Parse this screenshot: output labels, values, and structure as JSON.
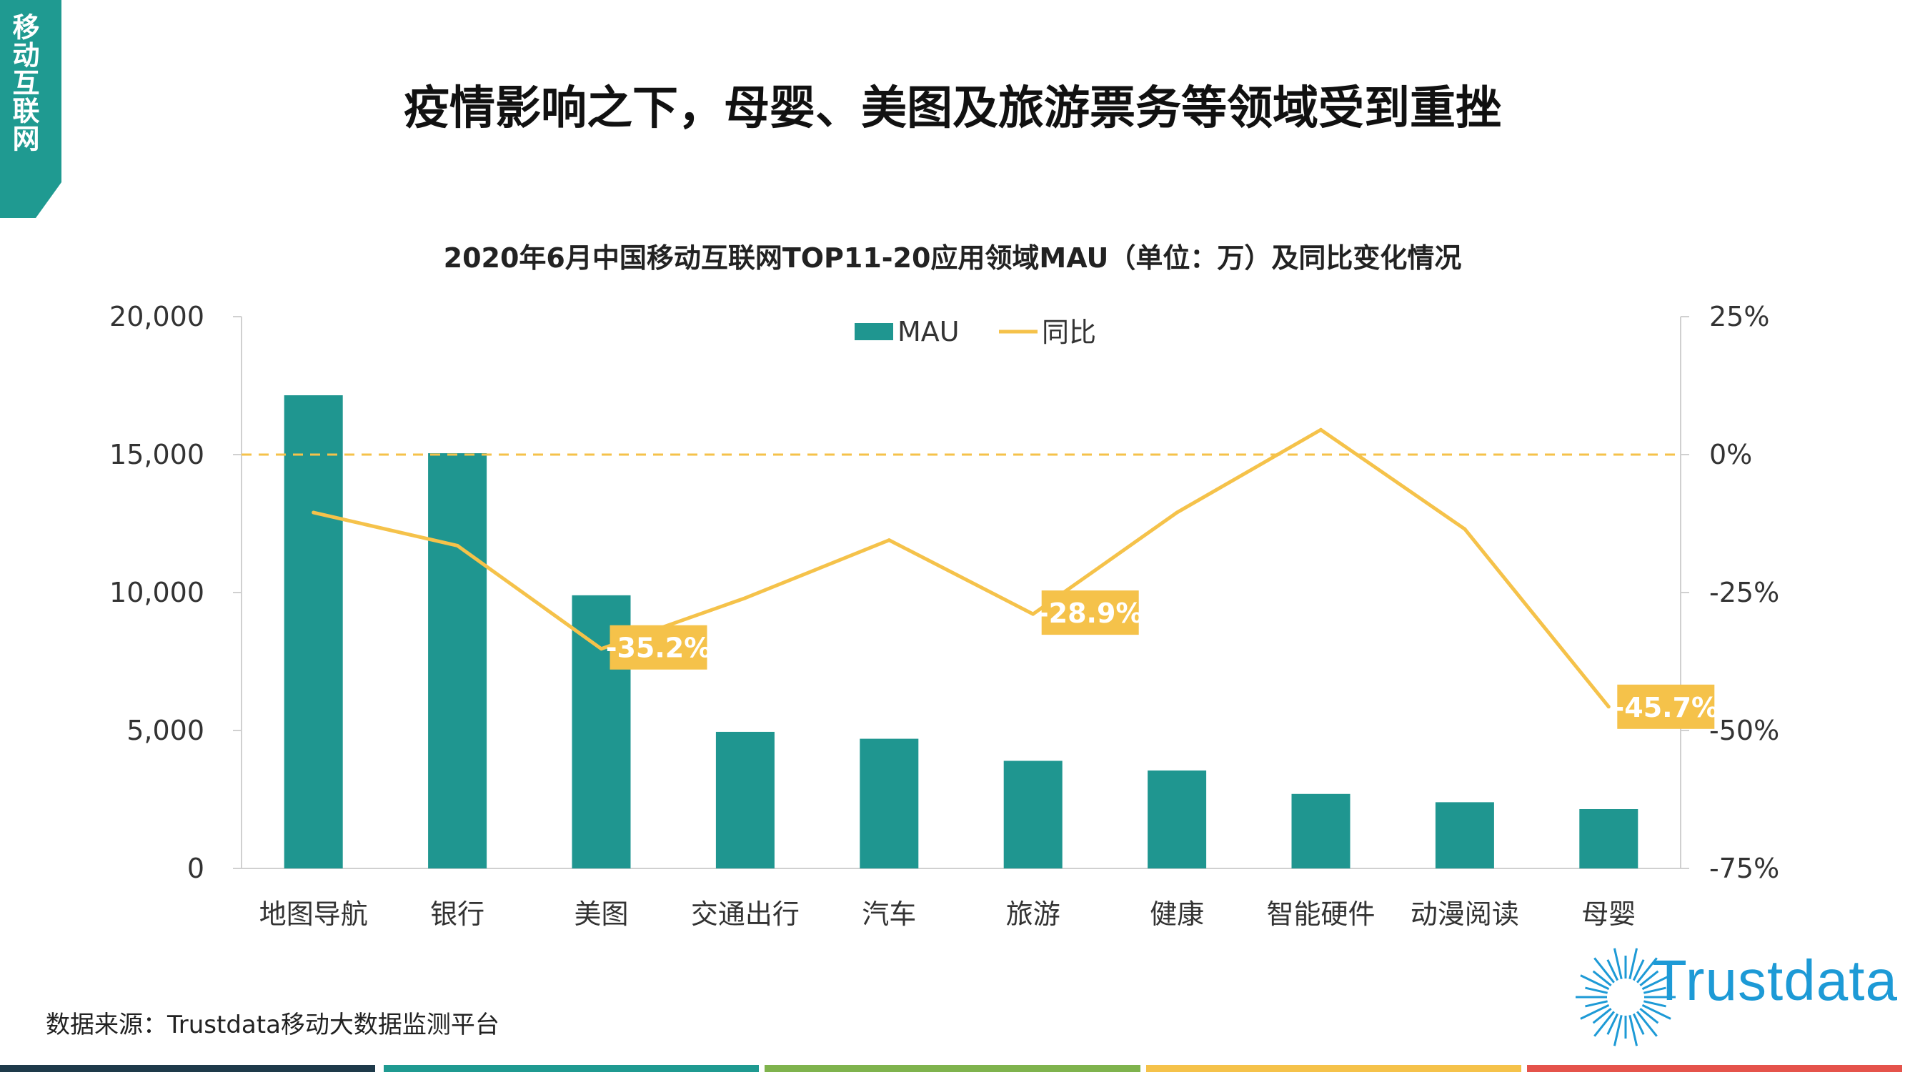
{
  "corner_tab": {
    "text": "移动互联网",
    "color": "#1f9a91"
  },
  "page_title": "疫情影响之下，母婴、美图及旅游票务等领域受到重挫",
  "source_text": "数据来源：Trustdata移动大数据监测平台",
  "logo": {
    "text": "Trustdata",
    "icon": "sunburst-icon",
    "color": "#1d9ad6"
  },
  "bottom_stripes": [
    "#1e3a4a",
    "#1f9a91",
    "#7fb34d",
    "#f5c24a",
    "#e5534b"
  ],
  "chart_data": {
    "type": "bar",
    "title": "2020年6月中国移动互联网TOP11-20应用领域MAU（单位：万）及同比变化情况",
    "categories": [
      "地图导航",
      "银行",
      "美图",
      "交通出行",
      "汽车",
      "旅游",
      "健康",
      "智能硬件",
      "动漫阅读",
      "母婴"
    ],
    "series": [
      {
        "name": "MAU",
        "type": "bar",
        "axis": "left",
        "color": "#1f9690",
        "values": [
          17150,
          15050,
          9900,
          4950,
          4700,
          3900,
          3550,
          2700,
          2400,
          2150
        ]
      },
      {
        "name": "同比",
        "type": "line",
        "axis": "right",
        "color": "#f5c24a",
        "values": [
          -10.5,
          -16.5,
          -35.2,
          -26.0,
          -15.5,
          -28.9,
          -10.5,
          4.5,
          -13.5,
          -45.7
        ]
      }
    ],
    "data_labels": [
      {
        "index": 2,
        "text": "-35.2%"
      },
      {
        "index": 5,
        "text": "-28.9%"
      },
      {
        "index": 9,
        "text": "-45.7%"
      }
    ],
    "left_axis": {
      "min": 0,
      "max": 20000,
      "ticks": [
        "0",
        "5,000",
        "10,000",
        "15,000",
        "20,000"
      ]
    },
    "right_axis": {
      "min": -75,
      "max": 25,
      "ticks": [
        "-75%",
        "-50%",
        "-25%",
        "0%",
        "25%"
      ]
    },
    "reference_line": {
      "value": 0,
      "axis": "right",
      "style": "dashed"
    },
    "legend_position": "top-center"
  }
}
